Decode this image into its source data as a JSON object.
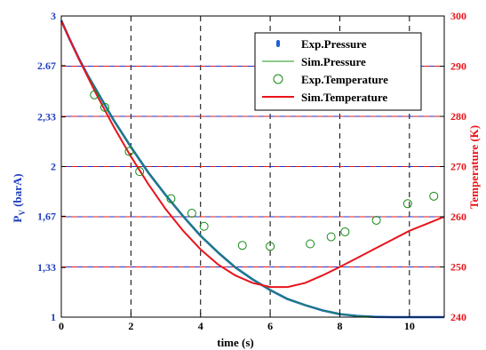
{
  "chart_data": {
    "type": "line",
    "xlabel": "time (s)",
    "ylabel_left": "P",
    "ylabel_left_sub": "V",
    "ylabel_left_unit": " (barA)",
    "ylabel_right": "Temperature (K)",
    "xlim": [
      0,
      11
    ],
    "ylim_left": [
      1,
      3
    ],
    "ylim_right": [
      240,
      300
    ],
    "x_ticks": [
      "0",
      "2",
      "4",
      "6",
      "8",
      "10"
    ],
    "y_left_ticks": [
      "1",
      "1,33",
      "1,67",
      "2",
      "2,33",
      "2.67",
      "3"
    ],
    "y_left_tick_values": [
      1,
      1.33,
      1.67,
      2,
      2.33,
      2.67,
      3
    ],
    "y_right_ticks": [
      "240",
      "250",
      "260",
      "270",
      "280",
      "290",
      "300"
    ],
    "grid": "dashed; vertical black at x=2,4,6,8,10; horizontal red/blue at right-axis 250-290",
    "legend_position": "top-right",
    "colors": {
      "pressure_axis": "#1f3fbf",
      "temperature_axis": "#e8141a",
      "exp_pressure": "#1f5fd6",
      "sim_pressure": "#1a9a1a",
      "exp_temperature": "#138a13",
      "sim_temperature": "#e8141a",
      "grid_v": "#000000",
      "grid_h_red": "#e8141a",
      "grid_h_blue": "#2030c0"
    },
    "series": [
      {
        "name": "Exp.Pressure",
        "axis": "left",
        "style": "dense blue line",
        "x": [
          0,
          0.25,
          0.5,
          0.75,
          1,
          1.5,
          2,
          2.5,
          3,
          3.5,
          4,
          4.5,
          5,
          5.5,
          6,
          6.5,
          7,
          7.5,
          8,
          8.5,
          9,
          9.5,
          10,
          10.5,
          11
        ],
        "y": [
          2.97,
          2.84,
          2.72,
          2.61,
          2.51,
          2.31,
          2.13,
          1.96,
          1.81,
          1.67,
          1.54,
          1.43,
          1.33,
          1.25,
          1.18,
          1.12,
          1.08,
          1.045,
          1.02,
          1.008,
          1.002,
          1.0,
          1.0,
          1.0,
          1.0
        ]
      },
      {
        "name": "Sim.Pressure",
        "axis": "left",
        "style": "thin green line",
        "x": [
          0,
          0.25,
          0.5,
          0.75,
          1,
          1.5,
          2,
          2.5,
          3,
          3.5,
          4,
          4.5,
          5,
          5.5,
          6,
          6.5,
          7,
          7.5,
          8,
          8.5,
          9,
          9.5,
          10,
          10.5,
          11
        ],
        "y": [
          2.97,
          2.84,
          2.72,
          2.61,
          2.51,
          2.31,
          2.13,
          1.96,
          1.81,
          1.67,
          1.54,
          1.43,
          1.33,
          1.25,
          1.18,
          1.12,
          1.08,
          1.045,
          1.02,
          1.008,
          1.002,
          1.0,
          1.0,
          1.0,
          1.0
        ]
      },
      {
        "name": "Exp.Temperature",
        "axis": "right",
        "style": "open green circles",
        "x": [
          0.95,
          1.25,
          1.95,
          2.25,
          3.15,
          3.75,
          4.1,
          5.2,
          6.0,
          7.15,
          7.75,
          8.15,
          9.05,
          9.95,
          10.7
        ],
        "y": [
          284.3,
          281.8,
          273.0,
          269.0,
          263.6,
          260.7,
          258.1,
          254.3,
          254.1,
          254.6,
          256.0,
          257.0,
          259.3,
          262.6,
          264.1
        ]
      },
      {
        "name": "Sim.Temperature",
        "axis": "right",
        "style": "red line",
        "x": [
          0,
          0.5,
          1,
          1.5,
          2,
          2.5,
          3,
          3.5,
          4,
          4.5,
          5,
          5.5,
          6,
          6.5,
          7,
          7.5,
          8,
          8.5,
          9,
          9.5,
          10,
          10.5,
          11
        ],
        "y": [
          299.0,
          291.5,
          284.5,
          278.0,
          272.0,
          266.5,
          261.5,
          257.2,
          253.5,
          250.5,
          248.3,
          246.8,
          246.0,
          246.0,
          246.8,
          248.3,
          250.0,
          251.8,
          253.6,
          255.4,
          257.2,
          258.6,
          260.0
        ]
      }
    ]
  }
}
